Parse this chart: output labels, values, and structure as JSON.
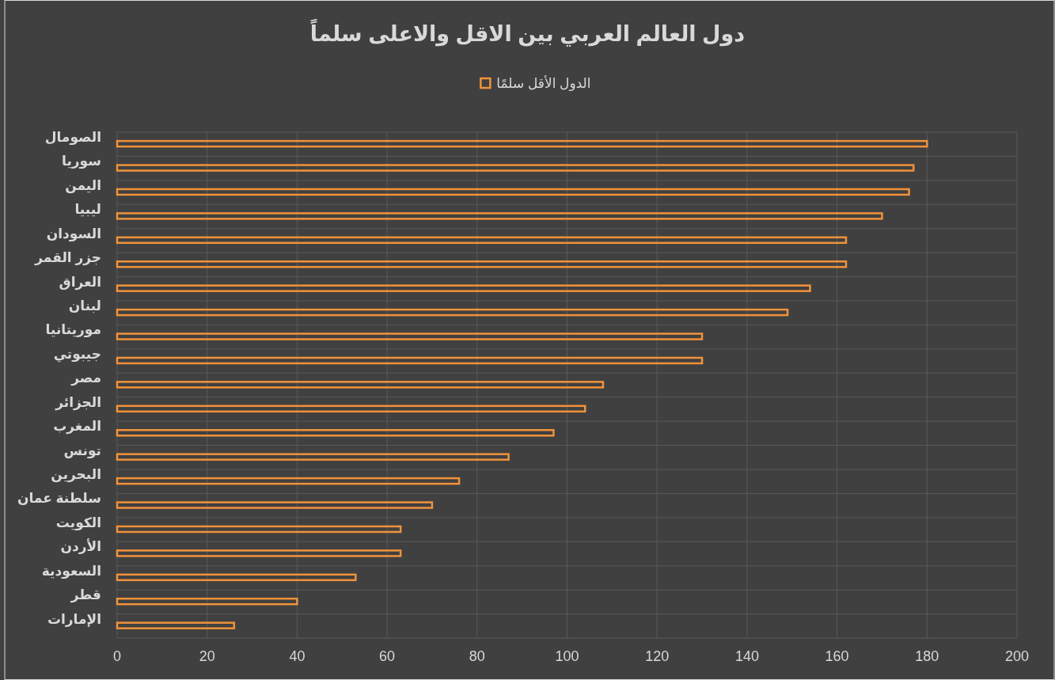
{
  "chart_data": {
    "type": "bar",
    "orientation": "horizontal",
    "title": "دول العالم العربي بين الاقل والاعلى سلماً",
    "categories": [
      "الصومال",
      "سوريا",
      "اليمن",
      "ليبيا",
      "السودان",
      "جزر القمر",
      "العراق",
      "لبنان",
      "موريتانيا",
      "جيبوتي",
      "مصر",
      "الجزائر",
      "المغرب",
      "تونس",
      "البحرين",
      "سلطنة عمان",
      "الكويت",
      "الأردن",
      "السعودية",
      "قطر",
      "الإمارات"
    ],
    "series": [
      {
        "name": "الدول الأقل سلمًا",
        "color": "#f0923a",
        "values": [
          180,
          177,
          176,
          170,
          162,
          162,
          154,
          149,
          130,
          130,
          108,
          104,
          97,
          87,
          76,
          70,
          63,
          63,
          53,
          40,
          26
        ]
      }
    ],
    "xlim": [
      0,
      200
    ],
    "xticks": [
      0,
      20,
      40,
      60,
      80,
      100,
      120,
      140,
      160,
      180,
      200
    ],
    "grid": true,
    "legend": "top"
  }
}
